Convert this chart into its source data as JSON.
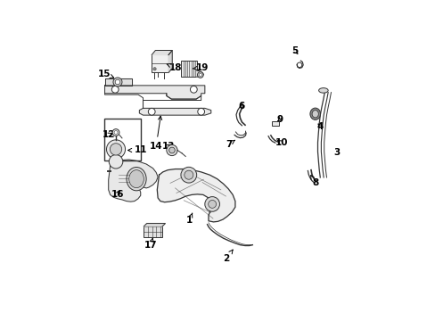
{
  "background_color": "#ffffff",
  "line_color": "#333333",
  "figsize": [
    4.89,
    3.6
  ],
  "dpi": 100,
  "parts_labels": {
    "1": [
      0.375,
      0.295,
      0.362,
      0.265
    ],
    "2": [
      0.54,
      0.135,
      0.51,
      0.108
    ],
    "3": [
      0.94,
      0.54,
      0.96,
      0.54
    ],
    "4": [
      0.87,
      0.66,
      0.892,
      0.645
    ],
    "5": [
      0.79,
      0.92,
      0.79,
      0.95
    ],
    "6": [
      0.58,
      0.7,
      0.575,
      0.728
    ],
    "7": [
      0.545,
      0.59,
      0.522,
      0.572
    ],
    "8": [
      0.85,
      0.43,
      0.872,
      0.415
    ],
    "9": [
      0.71,
      0.665,
      0.728,
      0.672
    ],
    "10": [
      0.7,
      0.595,
      0.735,
      0.578
    ],
    "11": [
      0.148,
      0.558,
      0.165,
      0.548
    ],
    "12": [
      0.058,
      0.605,
      0.038,
      0.612
    ],
    "13": [
      0.3,
      0.552,
      0.278,
      0.565
    ],
    "14": [
      0.248,
      0.585,
      0.228,
      0.565
    ],
    "15": [
      0.038,
      0.84,
      0.018,
      0.858
    ],
    "16": [
      0.09,
      0.395,
      0.072,
      0.37
    ],
    "17": [
      0.215,
      0.195,
      0.205,
      0.162
    ],
    "18": [
      0.268,
      0.875,
      0.308,
      0.882
    ],
    "19": [
      0.375,
      0.875,
      0.415,
      0.882
    ]
  }
}
